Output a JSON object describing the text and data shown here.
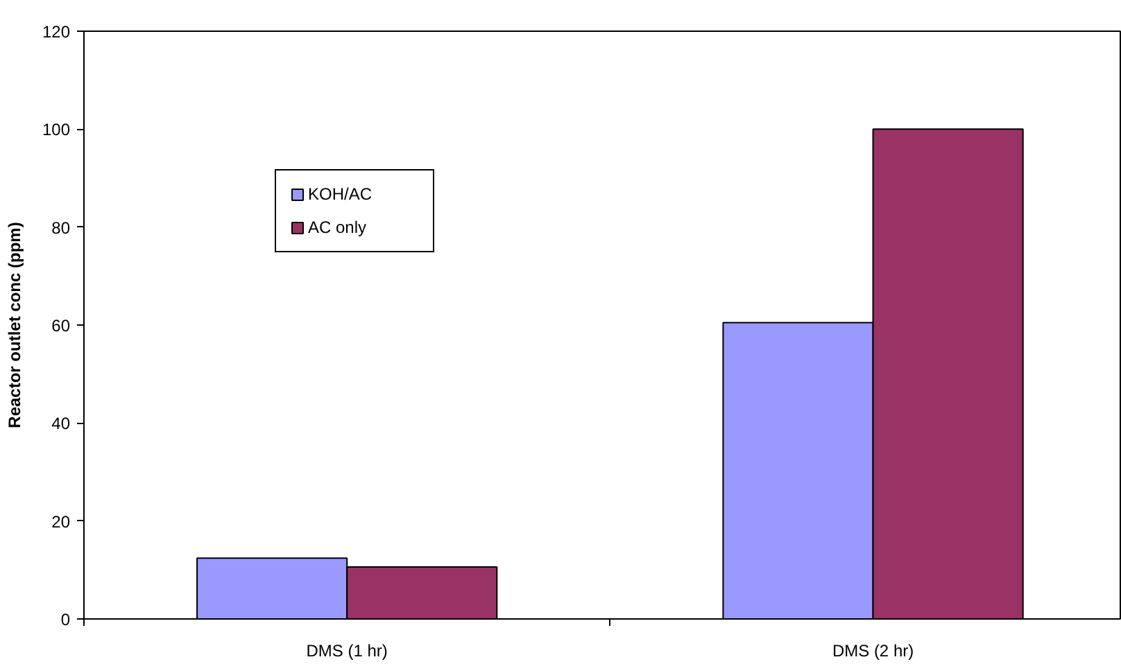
{
  "chart_data": {
    "type": "bar",
    "ylabel": "Reactor outlet conc (ppm)",
    "categories": [
      "DMS (1 hr)",
      "DMS (2 hr)"
    ],
    "series": [
      {
        "name": "KOH/AC",
        "color": "#9999ff",
        "values": [
          12.4,
          60.5
        ]
      },
      {
        "name": "AC only",
        "color": "#993366",
        "values": [
          10.6,
          100
        ]
      }
    ],
    "ylim": [
      0,
      120
    ],
    "yticks": [
      0,
      20,
      40,
      60,
      80,
      100,
      120
    ],
    "legend": "top left"
  }
}
